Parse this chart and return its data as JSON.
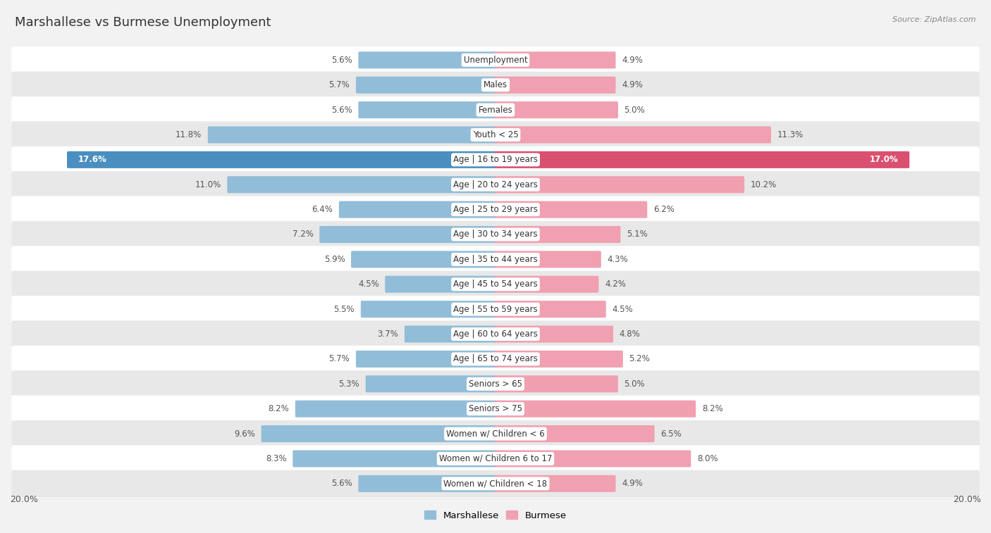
{
  "title": "Marshallese vs Burmese Unemployment",
  "source": "Source: ZipAtlas.com",
  "categories": [
    "Unemployment",
    "Males",
    "Females",
    "Youth < 25",
    "Age | 16 to 19 years",
    "Age | 20 to 24 years",
    "Age | 25 to 29 years",
    "Age | 30 to 34 years",
    "Age | 35 to 44 years",
    "Age | 45 to 54 years",
    "Age | 55 to 59 years",
    "Age | 60 to 64 years",
    "Age | 65 to 74 years",
    "Seniors > 65",
    "Seniors > 75",
    "Women w/ Children < 6",
    "Women w/ Children 6 to 17",
    "Women w/ Children < 18"
  ],
  "marshallese": [
    5.6,
    5.7,
    5.6,
    11.8,
    17.6,
    11.0,
    6.4,
    7.2,
    5.9,
    4.5,
    5.5,
    3.7,
    5.7,
    5.3,
    8.2,
    9.6,
    8.3,
    5.6
  ],
  "burmese": [
    4.9,
    4.9,
    5.0,
    11.3,
    17.0,
    10.2,
    6.2,
    5.1,
    4.3,
    4.2,
    4.5,
    4.8,
    5.2,
    5.0,
    8.2,
    6.5,
    8.0,
    4.9
  ],
  "marshallese_color": "#92bdd8",
  "burmese_color": "#f0a0b0",
  "marshallese_highlight_color": "#4a8fbf",
  "burmese_highlight_color": "#d95070",
  "bar_height": 0.58,
  "xlim": 20.0,
  "bg_color": "#f2f2f2",
  "row_color_odd": "#ffffff",
  "row_color_even": "#e8e8e8",
  "label_color_default": "#555555",
  "label_color_highlight": "#ffffff",
  "legend_marshallese": "Marshallese",
  "legend_burmese": "Burmese",
  "axis_label": "20.0%",
  "title_fontsize": 13,
  "label_fontsize": 8.5,
  "val_fontsize": 8.5
}
